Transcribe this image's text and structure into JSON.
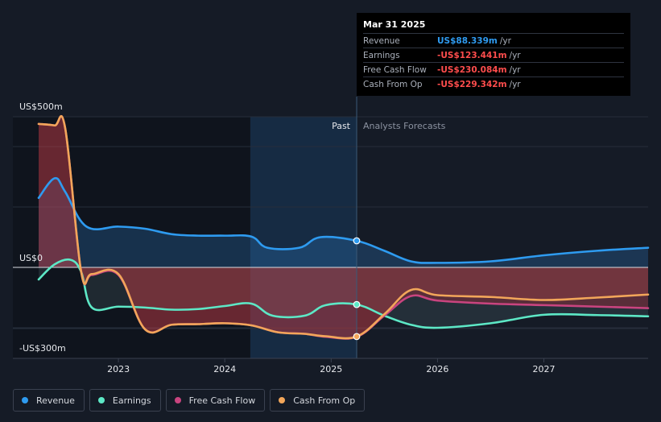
{
  "tooltip": {
    "date": "Mar 31 2025",
    "rows": [
      {
        "label": "Revenue",
        "value": "US$88.339m",
        "unit": "/yr",
        "color": "#2f9bf0"
      },
      {
        "label": "Earnings",
        "value": "-US$123.441m",
        "unit": "/yr",
        "color": "#ff4d4d"
      },
      {
        "label": "Free Cash Flow",
        "value": "-US$230.084m",
        "unit": "/yr",
        "color": "#ff4d4d"
      },
      {
        "label": "Cash From Op",
        "value": "-US$229.342m",
        "unit": "/yr",
        "color": "#ff4d4d"
      }
    ]
  },
  "legend": [
    {
      "label": "Revenue",
      "color": "#2e9bf0"
    },
    {
      "label": "Earnings",
      "color": "#5de8c6"
    },
    {
      "label": "Free Cash Flow",
      "color": "#c9447f"
    },
    {
      "label": "Cash From Op",
      "color": "#f2a65a"
    }
  ],
  "chart_data": {
    "type": "line",
    "y_labels": {
      "top": "US$500m",
      "zero": "US$0",
      "bottom": "-US$300m"
    },
    "ylim": [
      -300,
      500
    ],
    "xlim": [
      2022.25,
      2027.98
    ],
    "x_ticks": [
      2023,
      2024,
      2025,
      2026,
      2027
    ],
    "x_tick_labels": [
      "2023",
      "2024",
      "2025",
      "2026",
      "2027"
    ],
    "past_label": "Past",
    "forecast_label": "Analysts Forecasts",
    "past_shade_start": 2024.24,
    "divider_x": 2025.24,
    "series": [
      {
        "name": "Revenue",
        "color": "#2e9bf0",
        "points": [
          [
            2022.25,
            230
          ],
          [
            2022.4,
            295
          ],
          [
            2022.5,
            250
          ],
          [
            2022.7,
            135
          ],
          [
            2023.0,
            135
          ],
          [
            2023.25,
            128
          ],
          [
            2023.5,
            110
          ],
          [
            2023.75,
            105
          ],
          [
            2024.0,
            105
          ],
          [
            2024.25,
            102
          ],
          [
            2024.4,
            65
          ],
          [
            2024.7,
            65
          ],
          [
            2024.9,
            100
          ],
          [
            2025.24,
            88
          ],
          [
            2025.5,
            55
          ],
          [
            2025.75,
            20
          ],
          [
            2026.0,
            15
          ],
          [
            2026.5,
            20
          ],
          [
            2027.0,
            40
          ],
          [
            2027.5,
            55
          ],
          [
            2027.98,
            65
          ]
        ]
      },
      {
        "name": "Earnings",
        "color": "#5de8c6",
        "points": [
          [
            2022.25,
            -40
          ],
          [
            2022.4,
            10
          ],
          [
            2022.55,
            25
          ],
          [
            2022.65,
            -15
          ],
          [
            2022.75,
            -133
          ],
          [
            2023.0,
            -130
          ],
          [
            2023.25,
            -133
          ],
          [
            2023.5,
            -140
          ],
          [
            2023.75,
            -138
          ],
          [
            2024.0,
            -128
          ],
          [
            2024.25,
            -120
          ],
          [
            2024.45,
            -160
          ],
          [
            2024.75,
            -160
          ],
          [
            2024.95,
            -125
          ],
          [
            2025.24,
            -123
          ],
          [
            2025.5,
            -160
          ],
          [
            2025.75,
            -190
          ],
          [
            2026.0,
            -200
          ],
          [
            2026.5,
            -185
          ],
          [
            2027.0,
            -157
          ],
          [
            2027.5,
            -158
          ],
          [
            2027.98,
            -162
          ]
        ]
      },
      {
        "name": "Free Cash Flow",
        "color": "#c9447f",
        "points": [
          [
            2022.25,
            475
          ],
          [
            2022.4,
            470
          ],
          [
            2022.5,
            460
          ],
          [
            2022.65,
            -15
          ],
          [
            2022.75,
            -25
          ],
          [
            2023.0,
            -25
          ],
          [
            2023.25,
            -205
          ],
          [
            2023.5,
            -190
          ],
          [
            2023.75,
            -188
          ],
          [
            2024.0,
            -185
          ],
          [
            2024.25,
            -192
          ],
          [
            2024.5,
            -215
          ],
          [
            2024.75,
            -220
          ],
          [
            2024.95,
            -230
          ],
          [
            2025.24,
            -230
          ],
          [
            2025.5,
            -160
          ],
          [
            2025.75,
            -95
          ],
          [
            2026.0,
            -110
          ],
          [
            2026.5,
            -120
          ],
          [
            2027.0,
            -125
          ],
          [
            2027.5,
            -130
          ],
          [
            2027.98,
            -135
          ]
        ]
      },
      {
        "name": "Cash From Op",
        "color": "#f2a65a",
        "points": [
          [
            2022.25,
            475
          ],
          [
            2022.4,
            470
          ],
          [
            2022.5,
            460
          ],
          [
            2022.65,
            -15
          ],
          [
            2022.75,
            -22
          ],
          [
            2023.0,
            -22
          ],
          [
            2023.25,
            -205
          ],
          [
            2023.5,
            -190
          ],
          [
            2023.75,
            -188
          ],
          [
            2024.0,
            -185
          ],
          [
            2024.25,
            -192
          ],
          [
            2024.5,
            -215
          ],
          [
            2024.75,
            -220
          ],
          [
            2024.95,
            -228
          ],
          [
            2025.24,
            -229
          ],
          [
            2025.5,
            -155
          ],
          [
            2025.75,
            -75
          ],
          [
            2026.0,
            -92
          ],
          [
            2026.5,
            -98
          ],
          [
            2027.0,
            -108
          ],
          [
            2027.5,
            -100
          ],
          [
            2027.98,
            -90
          ]
        ]
      }
    ],
    "markers": [
      {
        "series": "Revenue",
        "x": 2025.24,
        "y": 88
      },
      {
        "series": "Earnings",
        "x": 2025.24,
        "y": -123
      },
      {
        "series": "Cash From Op",
        "x": 2025.24,
        "y": -229
      }
    ]
  }
}
